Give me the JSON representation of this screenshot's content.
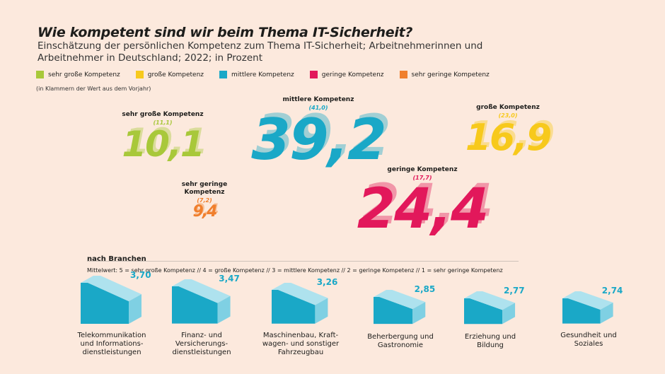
{
  "header": {
    "title": "Wie kompetent sind wir beim Thema IT-Sicherheit?",
    "subtitle": "Einschätzung der persönlichen Kompetenz zum Thema IT-Sicherheit; Arbeitnehmerinnen und Arbeitnehmer in Deutschland; 2022; in Prozent"
  },
  "legend": {
    "items": [
      {
        "label": "sehr große Kompetenz",
        "color": "#a8c83a"
      },
      {
        "label": "große Kompetenz",
        "color": "#f7c91c"
      },
      {
        "label": "mittlere  Kompetenz",
        "color": "#1aa8c7"
      },
      {
        "label": "geringe Kompetenz",
        "color": "#e2185b"
      },
      {
        "label": "sehr geringe Kompetenz",
        "color": "#f07f2d"
      }
    ],
    "note": "(in Klammern der Wert aus dem Vorjahr)"
  },
  "chart_data": [
    {
      "type": "bar",
      "categories": [
        "sehr große Kompetenz",
        "große Kompetenz",
        "mittlere Kompetenz",
        "geringe Kompetenz",
        "sehr geringe Kompetenz"
      ],
      "series": [
        {
          "values": [
            10.1,
            16.9,
            39.2,
            24.4,
            9.4
          ],
          "display": [
            "10,1",
            "16,9",
            "39,2",
            "24,4",
            "9,4"
          ]
        },
        {
          "values": [
            11.1,
            23.0,
            41.0,
            17.7,
            7.2
          ],
          "display": [
            "(11,1)",
            "(23,0)",
            "(41,0)",
            "(17,7)",
            "(7,2)"
          ]
        }
      ],
      "colors": [
        "#a8c83a",
        "#f7c91c",
        "#1aa8c7",
        "#e2185b",
        "#f07f2d"
      ],
      "labels": [
        "sehr große Kompetenz",
        "große Kompetenz",
        "mittlere Kompetenz",
        "geringe Kompetenz",
        "sehr geringe\nKompetenz"
      ]
    },
    {
      "type": "bar",
      "title": "nach Branchen",
      "subtitle": "Mittelwert: 5 = sehr große Kompetenz // 4 = große Kompetenz // 3 = mittlere Kompetenz // 2 = geringe Kompetenz // 1 = sehr geringe Kompetenz",
      "categories": [
        "Telekommunikation und Informations-dienstleistungen",
        "Finanz- und Versicherungs-dienstleistungen",
        "Maschinenbau, Kraft-wagen- und sonstiger Fahrzeugbau",
        "Beherbergung und Gastronomie",
        "Erziehung und Bildung",
        "Gesundheit und Soziales"
      ],
      "labels": [
        "Telekommunikation\nund Informations-\ndienstleistungen",
        "Finanz- und\nVersicherungs-\ndienstleistungen",
        "Maschinenbau, Kraft-\nwagen- und sonstiger\nFahrzeugbau",
        "Beherbergung und\nGastronomie",
        "Erziehung und\nBildung",
        "Gesundheit und\nSoziales"
      ],
      "values": [
        3.7,
        3.47,
        3.26,
        2.85,
        2.77,
        2.74
      ],
      "display": [
        "3,70",
        "3,47",
        "3,26",
        "2,85",
        "2,77",
        "2,74"
      ],
      "color": "#1aa8c7"
    }
  ]
}
